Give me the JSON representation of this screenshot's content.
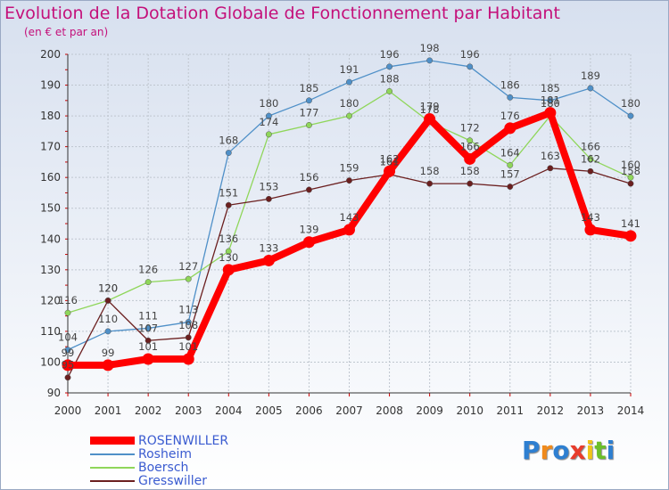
{
  "title": "Evolution de la Dotation Globale de Fonctionnement par Habitant",
  "subtitle": "(en € et par an)",
  "chart_data": {
    "type": "line",
    "title": "Evolution de la Dotation Globale de Fonctionnement par Habitant",
    "subtitle": "(en € et par an)",
    "x": [
      "2000",
      "2001",
      "2002",
      "2003",
      "2004",
      "2005",
      "2006",
      "2007",
      "2008",
      "2009",
      "2010",
      "2011",
      "2012",
      "2013",
      "2014"
    ],
    "ylim": [
      90,
      200
    ],
    "yticks": [
      90,
      100,
      110,
      120,
      130,
      140,
      150,
      160,
      170,
      180,
      190,
      200
    ],
    "grid": true,
    "series": [
      {
        "name": "Rosheim",
        "color": "#4f90c8",
        "values": [
          104,
          110,
          111,
          113,
          168,
          180,
          185,
          191,
          196,
          198,
          196,
          186,
          185,
          189,
          180
        ]
      },
      {
        "name": "Boersch",
        "color": "#8fd65a",
        "values": [
          116,
          120,
          126,
          127,
          136,
          174,
          177,
          180,
          188,
          178,
          172,
          164,
          180,
          166,
          160
        ]
      },
      {
        "name": "Gresswiller",
        "color": "#6b1f1f",
        "values": [
          95,
          120,
          107,
          108,
          151,
          153,
          156,
          159,
          161,
          158,
          158,
          157,
          163,
          162,
          158
        ]
      },
      {
        "name": "ROSENWILLER",
        "color": "#ff0000",
        "values": [
          99,
          99,
          101,
          101,
          130,
          133,
          139,
          143,
          162,
          179,
          166,
          176,
          181,
          143,
          141
        ]
      }
    ],
    "legend": [
      "ROSENWILLER",
      "Rosheim",
      "Boersch",
      "Gresswiller"
    ]
  },
  "logo": {
    "letters": [
      "P",
      "r",
      "o",
      "x",
      "i",
      "t",
      "i"
    ],
    "colors": [
      "#2e7fd1",
      "#f08a1c",
      "#2e7fd1",
      "#e83c2c",
      "#f0c419",
      "#6bbf2a",
      "#2e7fd1"
    ]
  }
}
